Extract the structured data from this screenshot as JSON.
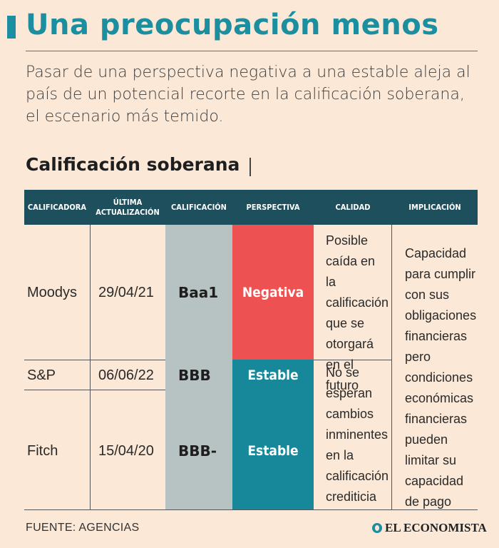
{
  "header": {
    "title": "Una preocupación menos",
    "subtitle": "Pasar de una perspectiva negativa a una estable aleja al país de un potencial recorte en la calificación soberana, el escenario más temido."
  },
  "section": {
    "title": "Calificación soberana"
  },
  "table": {
    "headers": {
      "calificadora": "CALIFICADORA",
      "actualizacion_1": "ÚLTIMA",
      "actualizacion_2": "ACTUALIZACIÓN",
      "calificacion": "CALIFICACIÓN",
      "perspectiva": "PERSPECTIVA",
      "calidad": "CALIDAD",
      "implicacion": "IMPLICACIÓN"
    },
    "rows": [
      {
        "calificadora": "Moodys",
        "fecha": "29/04/21",
        "calificacion": "Baa1",
        "perspectiva": "Negativa"
      },
      {
        "calificadora": "S&P",
        "fecha": "06/06/22",
        "calificacion": "BBB",
        "perspectiva": "Estable"
      },
      {
        "calificadora": "Fitch",
        "fecha": "15/04/20",
        "calificacion": "BBB-",
        "perspectiva": "Estable"
      }
    ],
    "calidad_negativa": "Posible caída en la calificación que se otorgará en el futuro",
    "calidad_estable": "No se esperan cambios inminentes en la calificación crediticia",
    "implicacion": "Capacidad para cumplir con sus obligaciones financieras pero condiciones económicas financieras pueden limitar su capacidad de pago"
  },
  "footer": {
    "source": "FUENTE: AGENCIAS",
    "brand": "EL ECONOMISTA"
  },
  "colors": {
    "background": "#fbe8d6",
    "accent": "#1b8fa0",
    "header_bg": "#1d4f5c",
    "negative": "#ee5151",
    "stable": "#17889a",
    "rating_col": "#b7c3c2"
  },
  "icons": {
    "brand": "el-economista-logo-icon"
  }
}
